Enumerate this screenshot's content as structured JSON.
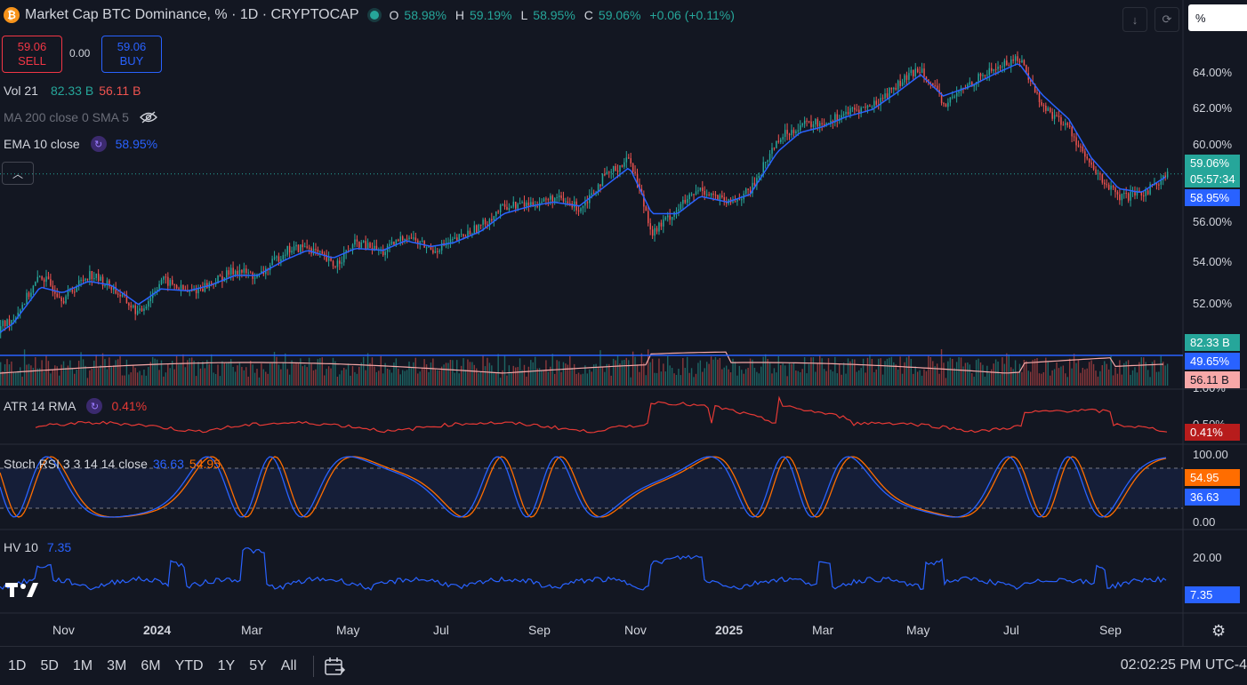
{
  "header": {
    "title": "Market Cap BTC Dominance, % · 1D · CRYPTOCAP",
    "logo_glyph": "₿",
    "ohlc": {
      "open_label": "O",
      "open": "58.98%",
      "high_label": "H",
      "high": "59.19%",
      "low_label": "L",
      "low": "58.95%",
      "close_label": "C",
      "close": "59.06%",
      "change": "+0.06 (+0.11%)"
    },
    "scale_mode": "%"
  },
  "trade": {
    "sell_price": "59.06",
    "sell_label": "SELL",
    "spread": "0.00",
    "buy_price": "59.06",
    "buy_label": "BUY"
  },
  "legend": {
    "vol": {
      "name": "Vol 21",
      "up": "82.33 B",
      "down": "56.11 B"
    },
    "ma": {
      "name": "MA 200 close 0 SMA 5"
    },
    "ema": {
      "name": "EMA 10 close",
      "value": "58.95%"
    },
    "atr": {
      "name": "ATR 14 RMA",
      "value": "0.41%"
    },
    "stoch": {
      "name": "Stoch RSI 3 3 14 14 close",
      "k": "36.63",
      "d": "54.95"
    },
    "hv": {
      "name": "HV 10",
      "value": "7.35"
    }
  },
  "price_axis": [
    "64.00%",
    "62.00%",
    "60.00%",
    "58.00%",
    "56.00%",
    "54.00%",
    "52.00%"
  ],
  "atr_axis": [
    "1.00%",
    "0.50%"
  ],
  "stoch_axis": [
    "100.00",
    "0.00"
  ],
  "hv_axis": [
    "20.00"
  ],
  "price_tags": {
    "last": "59.06%",
    "countdown": "05:57:34",
    "ema": "58.95%",
    "vol_up": "82.33 B",
    "ma_line": "49.65%",
    "vol_down": "56.11 B",
    "atr": "0.41%",
    "stoch_d": "54.95",
    "stoch_k": "36.63",
    "hv": "7.35"
  },
  "time_axis": [
    "Nov",
    "2024",
    "Mar",
    "May",
    "Jul",
    "Sep",
    "Nov",
    "2025",
    "Mar",
    "May",
    "Jul",
    "Sep"
  ],
  "range_buttons": [
    "1D",
    "5D",
    "1M",
    "3M",
    "6M",
    "YTD",
    "1Y",
    "5Y",
    "All"
  ],
  "timezone": "02:02:25 PM UTC-4",
  "colors": {
    "background": "#131722",
    "up": "#26a69a",
    "down": "#ef5350",
    "ema": "#2962ff",
    "atr": "#e53935",
    "stoch_k": "#2962ff",
    "stoch_d": "#ff6d00",
    "hv": "#2962ff"
  },
  "chart_data": {
    "type": "line",
    "series": [
      {
        "name": "Market Cap BTC Dominance, %",
        "x": [
          "2023-10-01",
          "2023-10-15",
          "2023-11-01",
          "2023-11-15",
          "2023-12-01",
          "2023-12-15",
          "2024-01-01",
          "2024-01-15",
          "2024-02-01",
          "2024-02-15",
          "2024-03-01",
          "2024-03-15",
          "2024-04-01",
          "2024-04-15",
          "2024-05-01",
          "2024-05-15",
          "2024-06-01",
          "2024-06-15",
          "2024-07-01",
          "2024-07-15",
          "2024-08-01",
          "2024-08-15",
          "2024-09-01",
          "2024-09-15",
          "2024-10-01",
          "2024-10-15",
          "2024-11-01",
          "2024-11-15",
          "2024-12-01",
          "2024-12-15",
          "2025-01-01",
          "2025-01-15",
          "2025-02-01",
          "2025-02-15",
          "2025-03-01",
          "2025-03-15",
          "2025-04-01",
          "2025-04-15",
          "2025-05-01",
          "2025-05-15",
          "2025-06-01",
          "2025-06-15",
          "2025-07-01",
          "2025-07-15",
          "2025-08-01",
          "2025-08-15",
          "2025-09-01",
          "2025-09-15",
          "2025-10-01"
        ],
        "values": [
          50.8,
          51.6,
          53.8,
          52.6,
          53.9,
          53.2,
          51.8,
          53.6,
          52.9,
          53.4,
          54.1,
          53.7,
          55.1,
          55.3,
          54.3,
          55.5,
          55.0,
          55.9,
          55.1,
          55.6,
          56.4,
          57.4,
          57.5,
          57.8,
          57.3,
          58.8,
          59.9,
          56.0,
          57.3,
          58.3,
          57.5,
          58.2,
          60.9,
          61.6,
          61.7,
          62.2,
          62.6,
          63.6,
          64.6,
          62.6,
          63.8,
          64.5,
          65.1,
          62.6,
          61.4,
          59.3,
          57.8,
          58.0,
          59.06
        ]
      },
      {
        "name": "EMA 10 close",
        "values": [
          50.5,
          51.3,
          53.2,
          52.9,
          53.5,
          53.3,
          52.3,
          53.1,
          53.0,
          53.3,
          53.8,
          53.8,
          54.6,
          55.1,
          54.7,
          55.2,
          55.1,
          55.6,
          55.3,
          55.5,
          56.1,
          57.0,
          57.4,
          57.6,
          57.4,
          58.3,
          59.4,
          57.0,
          57.0,
          57.9,
          57.6,
          58.0,
          60.2,
          61.2,
          61.5,
          62.0,
          62.4,
          63.2,
          64.2,
          63.1,
          63.6,
          64.2,
          64.8,
          63.2,
          61.9,
          59.9,
          58.3,
          58.1,
          58.95
        ]
      }
    ],
    "ylim": [
      51.5,
      66.0
    ],
    "y_ticks": [
      52,
      54,
      56,
      58,
      60,
      62,
      64
    ],
    "xlabel": "",
    "ylabel": "",
    "grid": false
  }
}
